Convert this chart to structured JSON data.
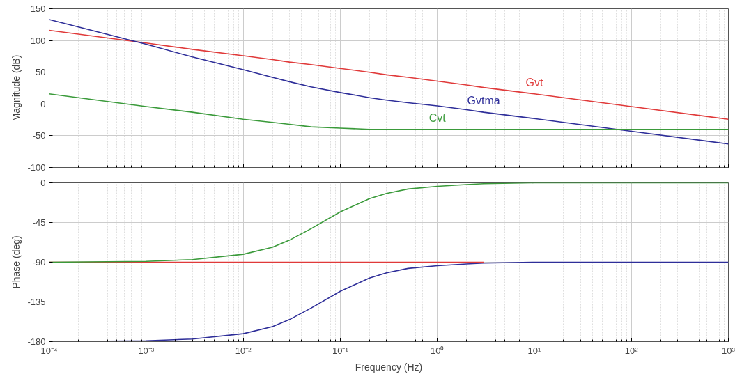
{
  "chart_data": [
    {
      "type": "line",
      "ylabel": "Magnitude (dB)",
      "log": "x",
      "grid": true,
      "tick_labels": "y",
      "legend": false,
      "x": [
        0.0001,
        0.001,
        0.003,
        0.01,
        0.02,
        0.03,
        0.05,
        0.1,
        0.2,
        0.3,
        0.5,
        1,
        2,
        3,
        10,
        100,
        1000
      ],
      "xlim": [
        0.0001,
        1000
      ],
      "xticks": [
        {
          "value": 0.0001,
          "label": null
        },
        {
          "value": 0.001,
          "label": null
        },
        {
          "value": 0.01,
          "label": null
        },
        {
          "value": 0.1,
          "label": null
        },
        {
          "value": 1,
          "label": null
        },
        {
          "value": 10,
          "label": null
        },
        {
          "value": 100,
          "label": null
        },
        {
          "value": 1000,
          "label": null
        }
      ],
      "ylim": [
        -100,
        150
      ],
      "yticks": [
        -100,
        -50,
        0,
        50,
        100,
        150
      ],
      "series": [
        {
          "name": "Gvt",
          "color": "#e03a3a",
          "values": [
            116,
            96,
            86,
            76,
            70,
            66,
            62,
            56,
            50,
            46,
            42,
            36,
            30,
            26,
            16,
            -4,
            -24
          ]
        },
        {
          "name": "Gvtma",
          "color": "#2e2e99",
          "values": [
            133,
            94,
            74,
            54,
            42,
            35,
            27,
            18,
            10,
            6,
            2,
            -3,
            -9,
            -13,
            -23,
            -43,
            -63
          ]
        },
        {
          "name": "Cvt",
          "color": "#3a9a3a",
          "values": [
            16,
            -4,
            -13,
            -24,
            -29,
            -32,
            -36,
            -38,
            -40,
            -40,
            -40,
            -40,
            -40,
            -40,
            -40,
            -40,
            -40
          ]
        }
      ]
    },
    {
      "type": "line",
      "xlabel": "Frequency (Hz)",
      "ylabel": "Phase (deg)",
      "log": "x",
      "grid": true,
      "legend": false,
      "x": [
        0.0001,
        0.001,
        0.003,
        0.01,
        0.02,
        0.03,
        0.05,
        0.1,
        0.2,
        0.3,
        0.5,
        1,
        2,
        3,
        10,
        100,
        1000
      ],
      "xlim": [
        0.0001,
        1000
      ],
      "xticks": [
        {
          "value": 0.0001,
          "label": "10⁻⁴"
        },
        {
          "value": 0.001,
          "label": "10⁻³"
        },
        {
          "value": 0.01,
          "label": "10⁻²"
        },
        {
          "value": 0.1,
          "label": "10⁻¹"
        },
        {
          "value": 1,
          "label": "10⁰"
        },
        {
          "value": 10,
          "label": "10¹"
        },
        {
          "value": 100,
          "label": "10²"
        },
        {
          "value": 1000,
          "label": "10³"
        }
      ],
      "ylim": [
        -180,
        0
      ],
      "yticks": [
        -180,
        -135,
        -90,
        -45,
        0
      ],
      "series": [
        {
          "color": "#e03a3a",
          "values": [
            -90,
            -90,
            -90,
            -90,
            -90,
            -90,
            -90,
            -90,
            -90,
            -90,
            -90,
            -90,
            -90,
            -90,
            null,
            null,
            null
          ]
        },
        {
          "color": "#2e2e99",
          "values": [
            -180,
            -179,
            -177,
            -171,
            -163,
            -155,
            -142,
            -123,
            -108,
            -102,
            -97,
            -94,
            -92,
            -91,
            -90,
            -90,
            -90
          ]
        },
        {
          "color": "#3a9a3a",
          "values": [
            -90,
            -89,
            -87,
            -81,
            -73,
            -65,
            -52,
            -33,
            -18,
            -12,
            -7,
            -4,
            -2,
            -1,
            0,
            0,
            0
          ]
        }
      ]
    }
  ]
}
